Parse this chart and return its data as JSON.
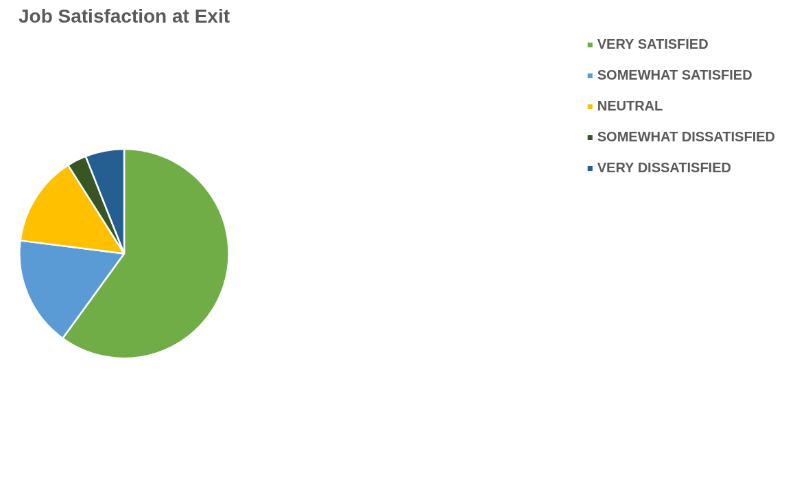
{
  "chart_data": {
    "type": "pie",
    "title": "Job Satisfaction at Exit",
    "categories": [
      "VERY SATISFIED",
      "SOMEWHAT SATISFIED",
      "NEUTRAL",
      "SOMEWHAT DISSATISFIED",
      "VERY DISSATISFIED"
    ],
    "values": [
      60,
      17,
      14,
      3,
      6
    ],
    "colors": [
      "#70ad47",
      "#5b9bd5",
      "#ffc000",
      "#375623",
      "#255e91"
    ],
    "legend": "right"
  }
}
